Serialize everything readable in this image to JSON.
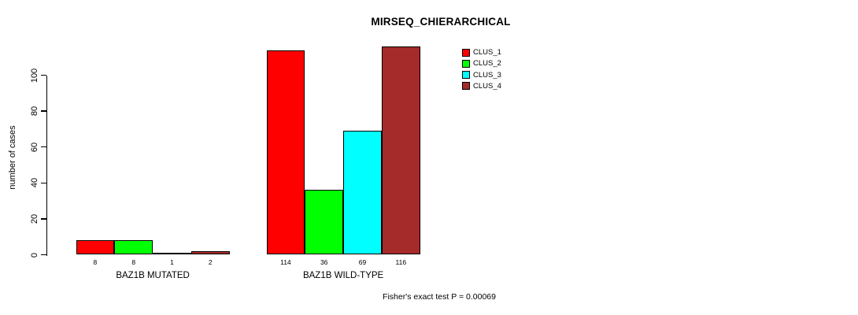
{
  "chart_data": {
    "type": "bar",
    "title": "MIRSEQ_CHIERARCHICAL",
    "ylabel": "number of cases",
    "xlabel": "",
    "footnote": "Fisher's exact test P = 0.00069",
    "categories": [
      "BAZ1B MUTATED",
      "BAZ1B WILD-TYPE"
    ],
    "series": [
      {
        "name": "CLUS_1",
        "color": "#FF0000",
        "values": [
          8,
          114
        ]
      },
      {
        "name": "CLUS_2",
        "color": "#00FF00",
        "values": [
          8,
          36
        ]
      },
      {
        "name": "CLUS_3",
        "color": "#00FFFF",
        "values": [
          1,
          69
        ]
      },
      {
        "name": "CLUS_4",
        "color": "#A52A2A",
        "values": [
          2,
          116
        ]
      }
    ],
    "yticks": [
      0,
      20,
      40,
      60,
      80,
      100
    ],
    "ylim": [
      0,
      117
    ],
    "grid": false,
    "bar_borders": "#000000",
    "value_labels_shown": true,
    "legend_position": "top-right",
    "background": "#FFFFFF"
  }
}
